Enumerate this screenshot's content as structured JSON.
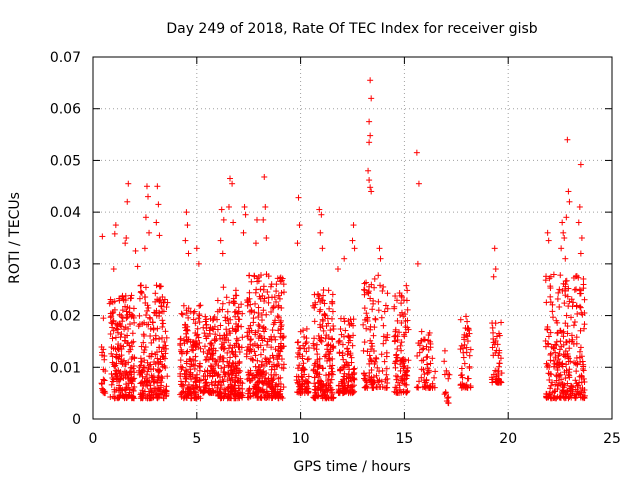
{
  "chart_data": {
    "type": "scatter",
    "title": "Day 249 of 2018, Rate Of TEC Index for receiver gisb",
    "xlabel": "GPS time / hours",
    "ylabel": "ROTI / TECUs",
    "xlim": [
      0,
      25
    ],
    "ylim": [
      0,
      0.07
    ],
    "x_ticks": [
      0,
      5,
      10,
      15,
      20,
      25
    ],
    "y_ticks": [
      0,
      0.01,
      0.02,
      0.03,
      0.04,
      0.05,
      0.06,
      0.07
    ],
    "x_tick_labels": [
      "0",
      "5",
      "10",
      "15",
      "20",
      "25"
    ],
    "y_tick_labels": [
      "0",
      "0.01",
      "0.02",
      "0.03",
      "0.04",
      "0.05",
      "0.06",
      "0.07"
    ],
    "grid": true,
    "marker": "plus",
    "color": "#ff0000",
    "clusters": [
      {
        "x_range": [
          0.4,
          0.6
        ],
        "y_range": [
          0.005,
          0.016
        ],
        "count": 20
      },
      {
        "x_range": [
          0.8,
          2.0
        ],
        "y_range": [
          0.004,
          0.024
        ],
        "count": 220
      },
      {
        "x_range": [
          2.2,
          3.6
        ],
        "y_range": [
          0.004,
          0.026
        ],
        "count": 230
      },
      {
        "x_range": [
          4.2,
          5.2
        ],
        "y_range": [
          0.004,
          0.022
        ],
        "count": 170
      },
      {
        "x_range": [
          5.3,
          6.0
        ],
        "y_range": [
          0.005,
          0.02
        ],
        "count": 110
      },
      {
        "x_range": [
          6.0,
          7.2
        ],
        "y_range": [
          0.004,
          0.026
        ],
        "count": 230
      },
      {
        "x_range": [
          7.4,
          9.2
        ],
        "y_range": [
          0.004,
          0.028
        ],
        "count": 340
      },
      {
        "x_range": [
          9.8,
          10.4
        ],
        "y_range": [
          0.005,
          0.018
        ],
        "count": 80
      },
      {
        "x_range": [
          10.6,
          11.6
        ],
        "y_range": [
          0.004,
          0.025
        ],
        "count": 180
      },
      {
        "x_range": [
          11.8,
          12.6
        ],
        "y_range": [
          0.005,
          0.02
        ],
        "count": 120
      },
      {
        "x_range": [
          13.0,
          14.2
        ],
        "y_range": [
          0.006,
          0.028
        ],
        "count": 120
      },
      {
        "x_range": [
          14.5,
          15.2
        ],
        "y_range": [
          0.005,
          0.026
        ],
        "count": 100
      },
      {
        "x_range": [
          15.6,
          16.5
        ],
        "y_range": [
          0.006,
          0.018
        ],
        "count": 60
      },
      {
        "x_range": [
          16.9,
          17.2
        ],
        "y_range": [
          0.003,
          0.014
        ],
        "count": 15
      },
      {
        "x_range": [
          17.7,
          18.2
        ],
        "y_range": [
          0.006,
          0.02
        ],
        "count": 50
      },
      {
        "x_range": [
          19.2,
          19.7
        ],
        "y_range": [
          0.007,
          0.02
        ],
        "count": 50
      },
      {
        "x_range": [
          21.8,
          23.7
        ],
        "y_range": [
          0.004,
          0.028
        ],
        "count": 280
      }
    ],
    "points": [
      [
        0.45,
        0.0353
      ],
      [
        0.5,
        0.0195
      ],
      [
        1.05,
        0.0358
      ],
      [
        1.1,
        0.0375
      ],
      [
        1.0,
        0.029
      ],
      [
        1.55,
        0.034
      ],
      [
        1.7,
        0.0455
      ],
      [
        1.65,
        0.042
      ],
      [
        1.6,
        0.035
      ],
      [
        2.05,
        0.0325
      ],
      [
        2.15,
        0.0295
      ],
      [
        2.6,
        0.045
      ],
      [
        2.65,
        0.043
      ],
      [
        2.55,
        0.039
      ],
      [
        2.7,
        0.036
      ],
      [
        2.5,
        0.033
      ],
      [
        3.1,
        0.045
      ],
      [
        3.15,
        0.0415
      ],
      [
        3.05,
        0.038
      ],
      [
        3.2,
        0.0355
      ],
      [
        4.5,
        0.04
      ],
      [
        4.55,
        0.0375
      ],
      [
        4.45,
        0.0345
      ],
      [
        4.6,
        0.032
      ],
      [
        5.0,
        0.033
      ],
      [
        5.1,
        0.03
      ],
      [
        6.2,
        0.0405
      ],
      [
        6.3,
        0.0385
      ],
      [
        6.15,
        0.0345
      ],
      [
        6.25,
        0.032
      ],
      [
        6.6,
        0.0465
      ],
      [
        6.7,
        0.0455
      ],
      [
        6.55,
        0.041
      ],
      [
        6.75,
        0.038
      ],
      [
        7.3,
        0.041
      ],
      [
        7.35,
        0.0395
      ],
      [
        7.25,
        0.036
      ],
      [
        7.9,
        0.0385
      ],
      [
        7.85,
        0.034
      ],
      [
        8.25,
        0.0468
      ],
      [
        8.3,
        0.041
      ],
      [
        8.2,
        0.0385
      ],
      [
        8.35,
        0.035
      ],
      [
        9.9,
        0.0428
      ],
      [
        9.95,
        0.0375
      ],
      [
        9.85,
        0.034
      ],
      [
        10.9,
        0.0405
      ],
      [
        11.0,
        0.0395
      ],
      [
        10.95,
        0.036
      ],
      [
        11.05,
        0.033
      ],
      [
        11.8,
        0.029
      ],
      [
        12.1,
        0.031
      ],
      [
        12.55,
        0.0375
      ],
      [
        12.5,
        0.0345
      ],
      [
        12.6,
        0.033
      ],
      [
        13.35,
        0.0655
      ],
      [
        13.4,
        0.062
      ],
      [
        13.3,
        0.0575
      ],
      [
        13.35,
        0.0548
      ],
      [
        13.3,
        0.0535
      ],
      [
        13.25,
        0.048
      ],
      [
        13.3,
        0.0462
      ],
      [
        13.35,
        0.0448
      ],
      [
        13.4,
        0.044
      ],
      [
        13.8,
        0.033
      ],
      [
        13.85,
        0.031
      ],
      [
        15.6,
        0.0515
      ],
      [
        15.7,
        0.0455
      ],
      [
        15.65,
        0.03
      ],
      [
        19.35,
        0.033
      ],
      [
        19.4,
        0.029
      ],
      [
        19.3,
        0.0275
      ],
      [
        21.9,
        0.036
      ],
      [
        21.95,
        0.0345
      ],
      [
        22.6,
        0.038
      ],
      [
        22.65,
        0.036
      ],
      [
        22.7,
        0.035
      ],
      [
        22.55,
        0.033
      ],
      [
        22.75,
        0.031
      ],
      [
        22.85,
        0.054
      ],
      [
        22.9,
        0.044
      ],
      [
        22.95,
        0.042
      ],
      [
        22.8,
        0.039
      ],
      [
        23.5,
        0.0492
      ],
      [
        23.45,
        0.041
      ],
      [
        23.4,
        0.038
      ],
      [
        23.55,
        0.035
      ],
      [
        23.5,
        0.032
      ]
    ]
  }
}
